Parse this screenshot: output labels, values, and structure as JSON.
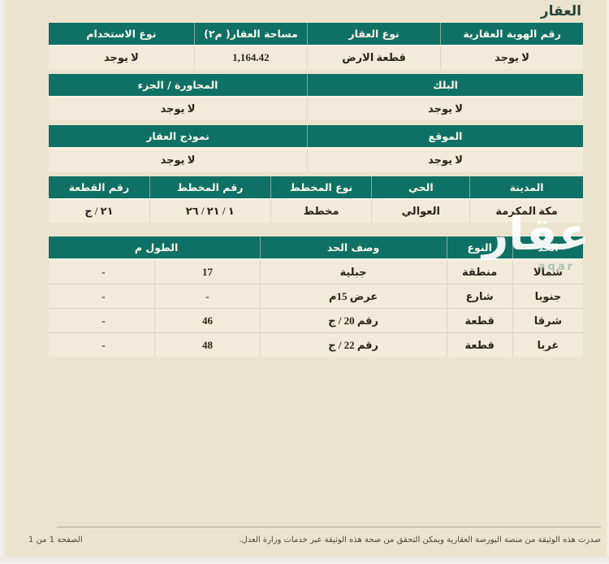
{
  "title": "العقار",
  "tables": {
    "property": {
      "headers": [
        "رقم الهوية العقارية",
        "نوع العقار",
        "مساحة العقار( م٢)",
        "نوع الاستخدام"
      ],
      "values": [
        "لا يوجد",
        "قطعة الارض",
        "1,164.42",
        "لا يوجد"
      ]
    },
    "block": {
      "header_right": "البلك",
      "header_left": "المجاورة / الجزء",
      "value_right": "لا يوجد",
      "value_left": "لا يوجد"
    },
    "location": {
      "header_right": "الموقع",
      "header_left": "نموذج العقار",
      "value_right": "لا يوجد",
      "value_left": "لا يوجد"
    },
    "plan": {
      "headers": [
        "المدينة",
        "الحي",
        "نوع المخطط",
        "رقم المخطط",
        "رقم القطعة"
      ],
      "values": [
        "مكة المكرمة",
        "العوالي",
        "مخطط",
        "١ / ٢١ / ٢٦",
        "٢١ / ج"
      ]
    },
    "boundaries": {
      "headers": {
        "side": "الحد",
        "type": "النوع",
        "desc": "وصف الحد",
        "length": "الطول م"
      },
      "rows": [
        {
          "side": "شمالا",
          "type": "منطقة",
          "desc": "جبلية",
          "length": "17",
          "extra": "-"
        },
        {
          "side": "جنوبا",
          "type": "شارع",
          "desc": "عرض 15م",
          "length": "-",
          "extra": "-"
        },
        {
          "side": "شرقا",
          "type": "قطعة",
          "desc": "رقم 20 / ج",
          "length": "46",
          "extra": "-"
        },
        {
          "side": "غربا",
          "type": "قطعة",
          "desc": "رقم 22 / ج",
          "length": "48",
          "extra": "-"
        }
      ]
    }
  },
  "watermark": {
    "logo_text": "عقار",
    "subtext": "aqar"
  },
  "footer": {
    "note": "صدرت هذه الوثيقة من منصة البورصة العقارية ويمكن التحقق من صحة هذه الوثيقة عبر خدمات وزارة العدل.",
    "page_label": "الصفحة 1 من 1"
  },
  "colors": {
    "header_teal": "#0f7166",
    "paper": "#ebe3cd",
    "row_cream": "#f2ebd9"
  }
}
